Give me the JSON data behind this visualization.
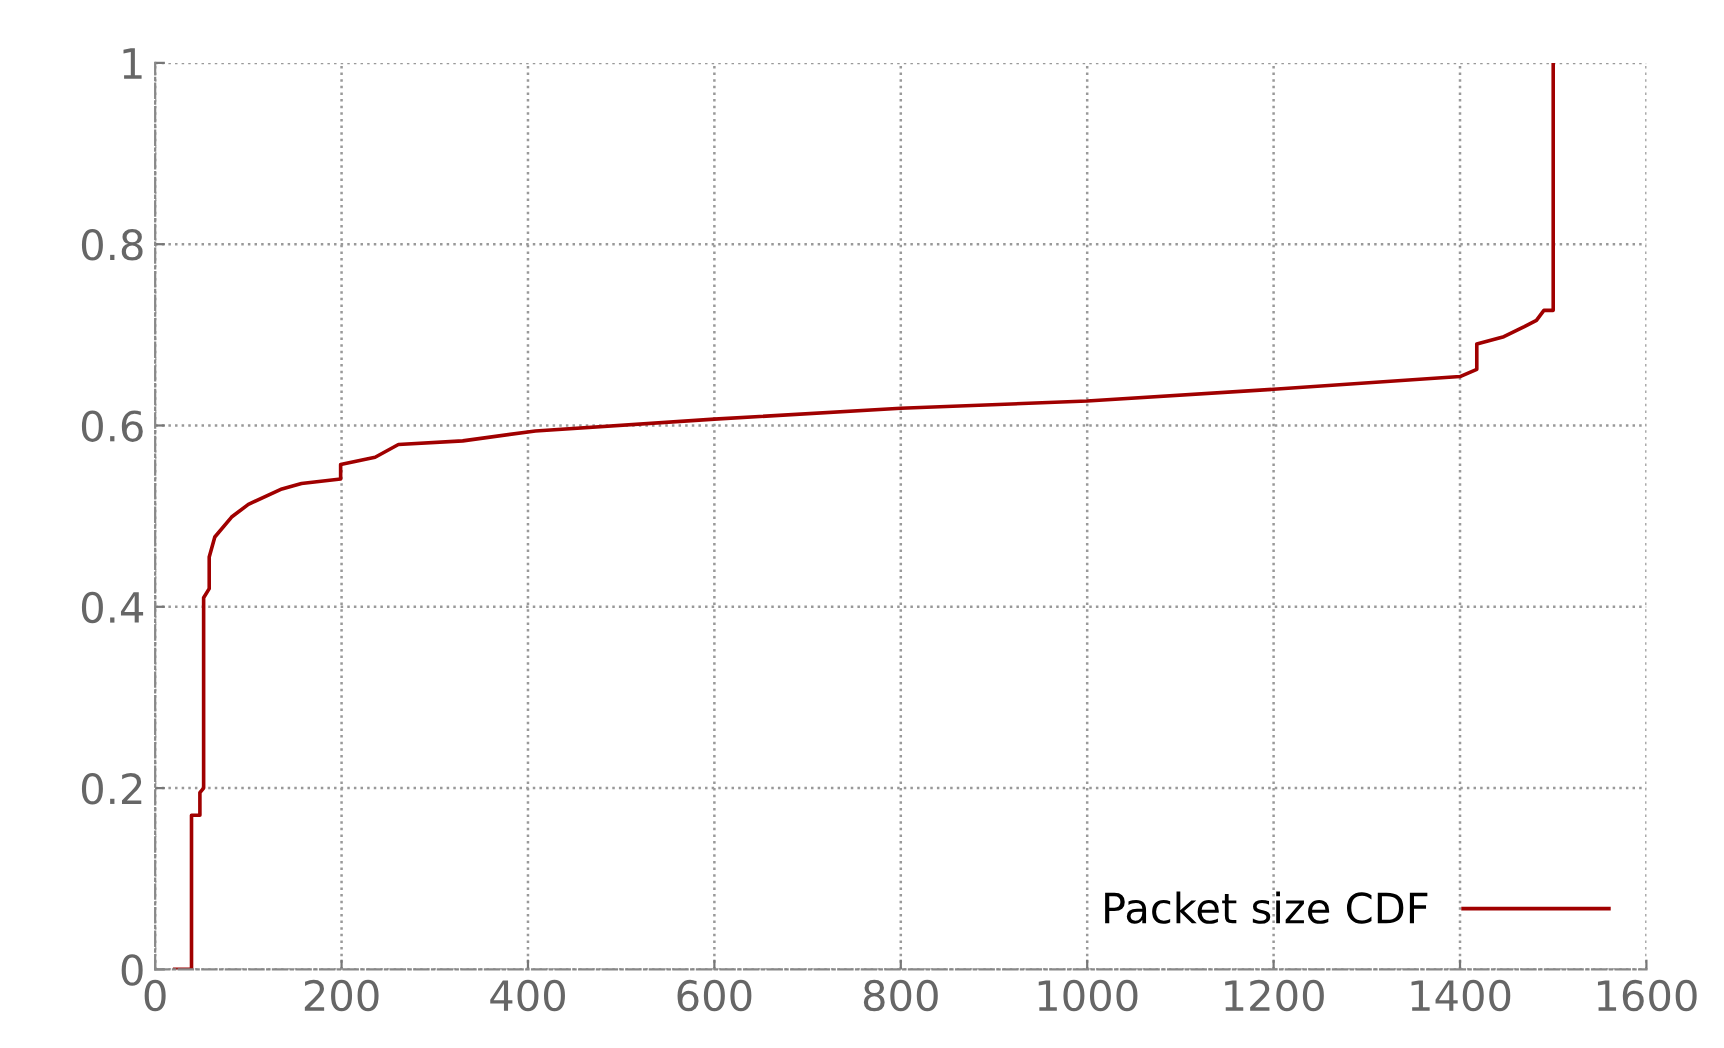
{
  "chart_data": {
    "type": "line",
    "xlim": [
      0,
      1600
    ],
    "ylim": [
      0,
      1
    ],
    "xticks": [
      0,
      200,
      400,
      600,
      800,
      1000,
      1200,
      1400,
      1600
    ],
    "yticks": [
      0,
      {
        "value": 0.2,
        "label": "0.2"
      },
      {
        "value": 0.4,
        "label": "0.4"
      },
      {
        "value": 0.6,
        "label": "0.6"
      },
      {
        "value": 0.8,
        "label": "0.8"
      },
      1
    ],
    "grid": true,
    "legend": "bottom right",
    "line_style": "solid",
    "marker": "none",
    "series": [
      {
        "name": "Packet size CDF",
        "color": "#a00000",
        "x": [
          21,
          39,
          39,
          48,
          48,
          52,
          52,
          58,
          58,
          64,
          82,
          100,
          136,
          157,
          199,
          199,
          236,
          261,
          330,
          408,
          600,
          800,
          1000,
          1200,
          1400,
          1418,
          1418,
          1447,
          1469,
          1482,
          1490,
          1500,
          1500
        ],
        "values": [
          0,
          0,
          0.17,
          0.17,
          0.195,
          0.2,
          0.41,
          0.42,
          0.455,
          0.477,
          0.499,
          0.513,
          0.53,
          0.536,
          0.541,
          0.557,
          0.565,
          0.579,
          0.583,
          0.594,
          0.607,
          0.619,
          0.627,
          0.64,
          0.654,
          0.662,
          0.69,
          0.698,
          0.709,
          0.716,
          0.727,
          0.727,
          1
        ]
      }
    ]
  }
}
